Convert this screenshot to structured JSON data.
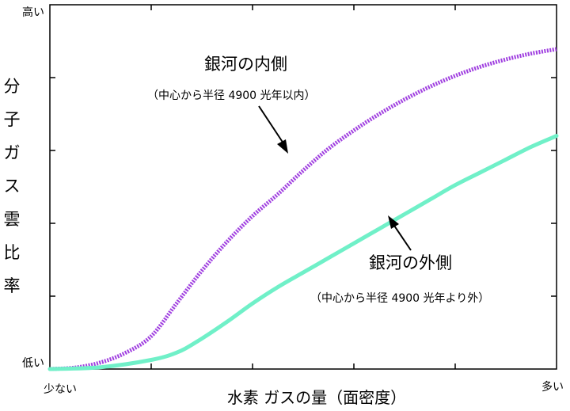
{
  "chart_data": {
    "type": "line",
    "xlabel": "水素 ガスの量（面密度）",
    "ylabel": [
      "分",
      "子",
      "ガ",
      "ス",
      "雲",
      "比",
      "率"
    ],
    "xlim": [
      0,
      1
    ],
    "ylim": [
      0,
      1
    ],
    "x_end_labels": {
      "low": "少ない",
      "high": "多い"
    },
    "y_end_labels": {
      "low": "低い",
      "high": "高い"
    },
    "x_ticks": [
      0.2,
      0.4,
      0.6,
      0.8
    ],
    "y_ticks": [
      0.2,
      0.4,
      0.6,
      0.8
    ],
    "grid": false,
    "series": [
      {
        "name": "銀河の内側",
        "note": "（中心から半径 4900 光年以内）",
        "color": "#a040e0",
        "style": "dotted",
        "points": [
          [
            0,
            0
          ],
          [
            0.05,
            0.004
          ],
          [
            0.1,
            0.018
          ],
          [
            0.15,
            0.045
          ],
          [
            0.2,
            0.09
          ],
          [
            0.25,
            0.18
          ],
          [
            0.3,
            0.27
          ],
          [
            0.35,
            0.35
          ],
          [
            0.4,
            0.42
          ],
          [
            0.45,
            0.48
          ],
          [
            0.5,
            0.545
          ],
          [
            0.55,
            0.605
          ],
          [
            0.6,
            0.655
          ],
          [
            0.65,
            0.7
          ],
          [
            0.7,
            0.74
          ],
          [
            0.75,
            0.775
          ],
          [
            0.8,
            0.805
          ],
          [
            0.85,
            0.83
          ],
          [
            0.9,
            0.85
          ],
          [
            0.95,
            0.866
          ],
          [
            1,
            0.878
          ]
        ]
      },
      {
        "name": "銀河の外側",
        "note": "（中心から半径 4900 光年より外）",
        "color": "#70f0c8",
        "style": "solid",
        "points": [
          [
            0,
            0
          ],
          [
            0.1,
            0.005
          ],
          [
            0.2,
            0.025
          ],
          [
            0.25,
            0.045
          ],
          [
            0.29,
            0.075
          ],
          [
            0.35,
            0.13
          ],
          [
            0.4,
            0.18
          ],
          [
            0.45,
            0.225
          ],
          [
            0.5,
            0.265
          ],
          [
            0.55,
            0.305
          ],
          [
            0.6,
            0.345
          ],
          [
            0.65,
            0.385
          ],
          [
            0.7,
            0.425
          ],
          [
            0.75,
            0.465
          ],
          [
            0.8,
            0.505
          ],
          [
            0.85,
            0.54
          ],
          [
            0.9,
            0.575
          ],
          [
            0.95,
            0.61
          ],
          [
            1,
            0.64
          ]
        ]
      }
    ]
  }
}
